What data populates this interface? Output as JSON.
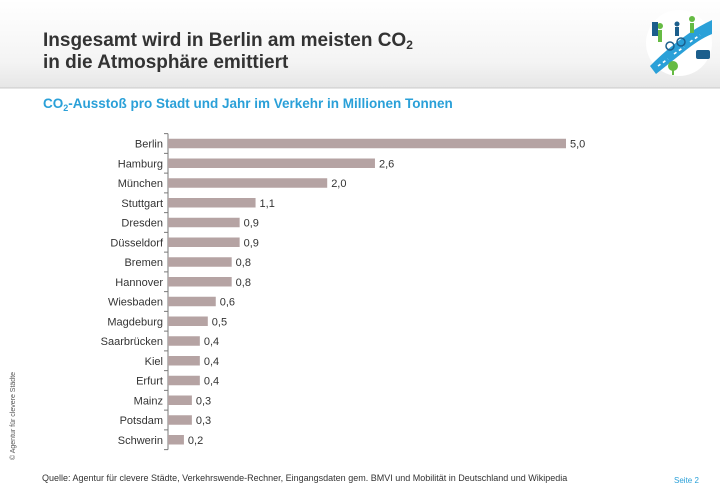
{
  "header": {
    "title_line1_pre": "Insgesamt wird in Berlin am meisten CO",
    "title_line1_sub": "2",
    "title_line2": "in die Atmosphäre emittiert"
  },
  "subtitle": {
    "pre": "CO",
    "sub": "2",
    "post": "-Ausstoß pro Stadt und Jahr im Verkehr in Millionen Tonnen"
  },
  "footer": {
    "source": "Quelle: Agentur für clevere Städte, Verkehrswende-Rechner, Eingangsdaten gem. BMVI und Mobilität in Deutschland und Wikipedia",
    "page": "Seite 2",
    "copyright": "© Agentur für clevere Städte"
  },
  "logo": {
    "icon": "cyclist-pedestrian-bus-tree-icon",
    "color": "#2aa0d8"
  },
  "chart_data": {
    "type": "bar",
    "orientation": "horizontal",
    "categories": [
      "Berlin",
      "Hamburg",
      "München",
      "Stuttgart",
      "Dresden",
      "Düsseldorf",
      "Bremen",
      "Hannover",
      "Wiesbaden",
      "Magdeburg",
      "Saarbrücken",
      "Kiel",
      "Erfurt",
      "Mainz",
      "Potsdam",
      "Schwerin"
    ],
    "values": [
      5.0,
      2.6,
      2.0,
      1.1,
      0.9,
      0.9,
      0.8,
      0.8,
      0.6,
      0.5,
      0.4,
      0.4,
      0.4,
      0.3,
      0.3,
      0.2
    ],
    "labels": [
      "5,0",
      "2,6",
      "2,0",
      "1,1",
      "0,9",
      "0,9",
      "0,8",
      "0,8",
      "0,6",
      "0,5",
      "0,4",
      "0,4",
      "0,4",
      "0,3",
      "0,3",
      "0,2"
    ],
    "bar_color": "#b5a3a3",
    "grid": false,
    "xlim": [
      0,
      5.0
    ]
  }
}
